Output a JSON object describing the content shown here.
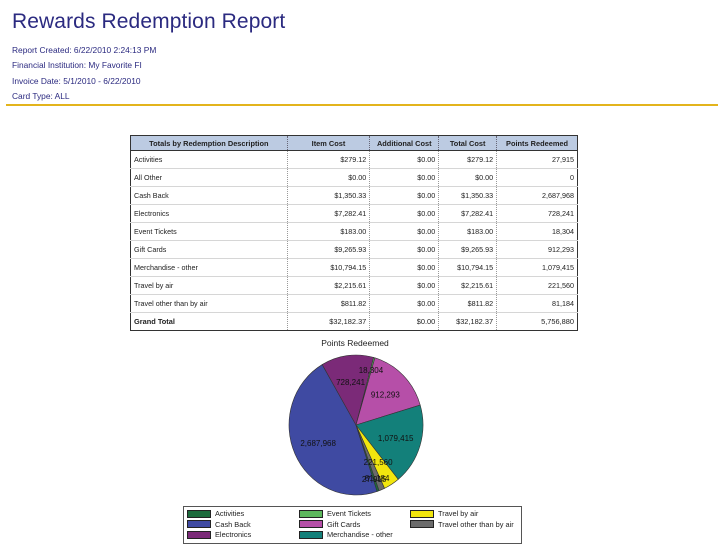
{
  "report": {
    "title": "Rewards Redemption Report",
    "created": "Report Created: 6/22/2010 2:24:13 PM",
    "institution": "Financial Institution: My Favorite FI",
    "invoice_date": "Invoice Date: 5/1/2010 - 6/22/2010",
    "card_type": "Card Type: ALL"
  },
  "table": {
    "headers": [
      "Totals by Redemption Description",
      "Item Cost",
      "Additional Cost",
      "Total Cost",
      "Points Redeemed"
    ],
    "rows": [
      [
        "Activities",
        "$279.12",
        "$0.00",
        "$279.12",
        "27,915"
      ],
      [
        "All Other",
        "$0.00",
        "$0.00",
        "$0.00",
        "0"
      ],
      [
        "Cash Back",
        "$1,350.33",
        "$0.00",
        "$1,350.33",
        "2,687,968"
      ],
      [
        "Electronics",
        "$7,282.41",
        "$0.00",
        "$7,282.41",
        "728,241"
      ],
      [
        "Event Tickets",
        "$183.00",
        "$0.00",
        "$183.00",
        "18,304"
      ],
      [
        "Gift Cards",
        "$9,265.93",
        "$0.00",
        "$9,265.93",
        "912,293"
      ],
      [
        "Merchandise - other",
        "$10,794.15",
        "$0.00",
        "$10,794.15",
        "1,079,415"
      ],
      [
        "Travel by air",
        "$2,215.61",
        "$0.00",
        "$2,215.61",
        "221,560"
      ],
      [
        "Travel other than by air",
        "$811.82",
        "$0.00",
        "$811.82",
        "81,184"
      ]
    ],
    "grand_total": [
      "Grand Total",
      "$32,182.37",
      "$0.00",
      "$32,182.37",
      "5,756,880"
    ]
  },
  "chart_data": {
    "type": "pie",
    "title": "Points Redeemed",
    "slices": [
      {
        "name": "Cash Back",
        "value": 2687968,
        "label": "2,687,968",
        "color": "#3f4aa2"
      },
      {
        "name": "Electronics",
        "value": 728241,
        "label": "728,241",
        "color": "#7b2a78"
      },
      {
        "name": "Event Tickets",
        "value": 18304,
        "label": "18,304",
        "color": "#5cb85c"
      },
      {
        "name": "Gift Cards",
        "value": 912293,
        "label": "912,293",
        "color": "#b64fa8"
      },
      {
        "name": "Merchandise - other",
        "value": 1079415,
        "label": "1,079,415",
        "color": "#13807a"
      },
      {
        "name": "Travel by air",
        "value": 221560,
        "label": "221,560",
        "color": "#f2e60e"
      },
      {
        "name": "Travel other than by air",
        "value": 81184,
        "label": "81,184",
        "color": "#6b6b6b"
      },
      {
        "name": "Activities",
        "value": 27915,
        "label": "27,915",
        "color": "#1d6b3c"
      }
    ],
    "legend": [
      {
        "name": "Activities",
        "color": "#1d6b3c"
      },
      {
        "name": "Event Tickets",
        "color": "#5cb85c"
      },
      {
        "name": "Travel by air",
        "color": "#f2e60e"
      },
      {
        "name": "Cash Back",
        "color": "#3f4aa2"
      },
      {
        "name": "Gift Cards",
        "color": "#b64fa8"
      },
      {
        "name": "Travel other than by air",
        "color": "#6b6b6b"
      },
      {
        "name": "Electronics",
        "color": "#7b2a78"
      },
      {
        "name": "Merchandise - other",
        "color": "#13807a"
      }
    ],
    "legend_position": "bottom"
  }
}
